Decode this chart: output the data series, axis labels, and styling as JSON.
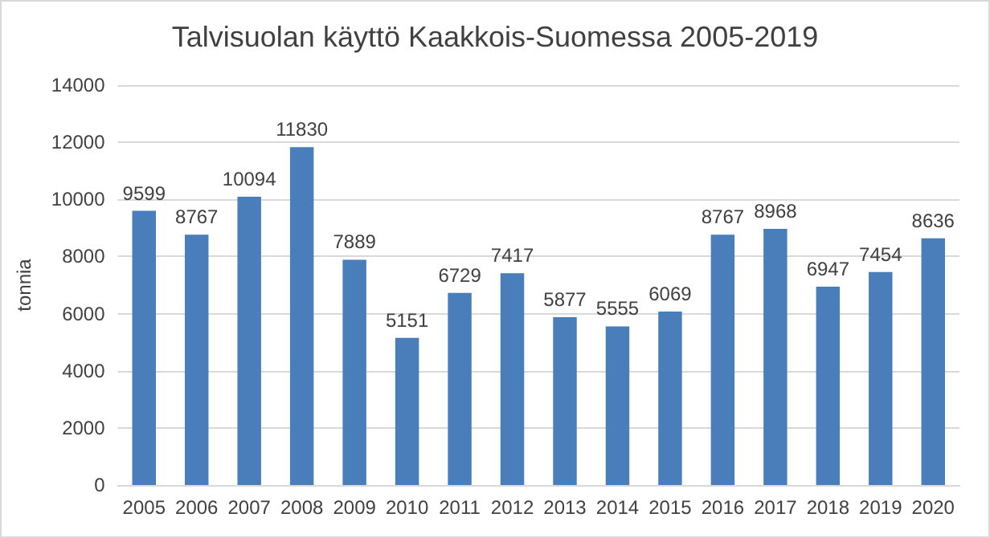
{
  "chart_data": {
    "type": "bar",
    "title": "Talvisuolan käyttö Kaakkois-Suomessa 2005-2019",
    "ylabel": "tonnia",
    "categories": [
      "2005",
      "2006",
      "2007",
      "2008",
      "2009",
      "2010",
      "2011",
      "2012",
      "2013",
      "2014",
      "2015",
      "2016",
      "2017",
      "2018",
      "2019",
      "2020"
    ],
    "values": [
      9599,
      8767,
      10094,
      11830,
      7889,
      5151,
      6729,
      7417,
      5877,
      5555,
      6069,
      8767,
      8968,
      6947,
      7454,
      8636
    ],
    "color": "#4a7ebb",
    "ylim": [
      0,
      14000
    ],
    "yticks": [
      0,
      2000,
      4000,
      6000,
      8000,
      10000,
      12000,
      14000
    ],
    "grid": "y",
    "data_labels": true
  }
}
